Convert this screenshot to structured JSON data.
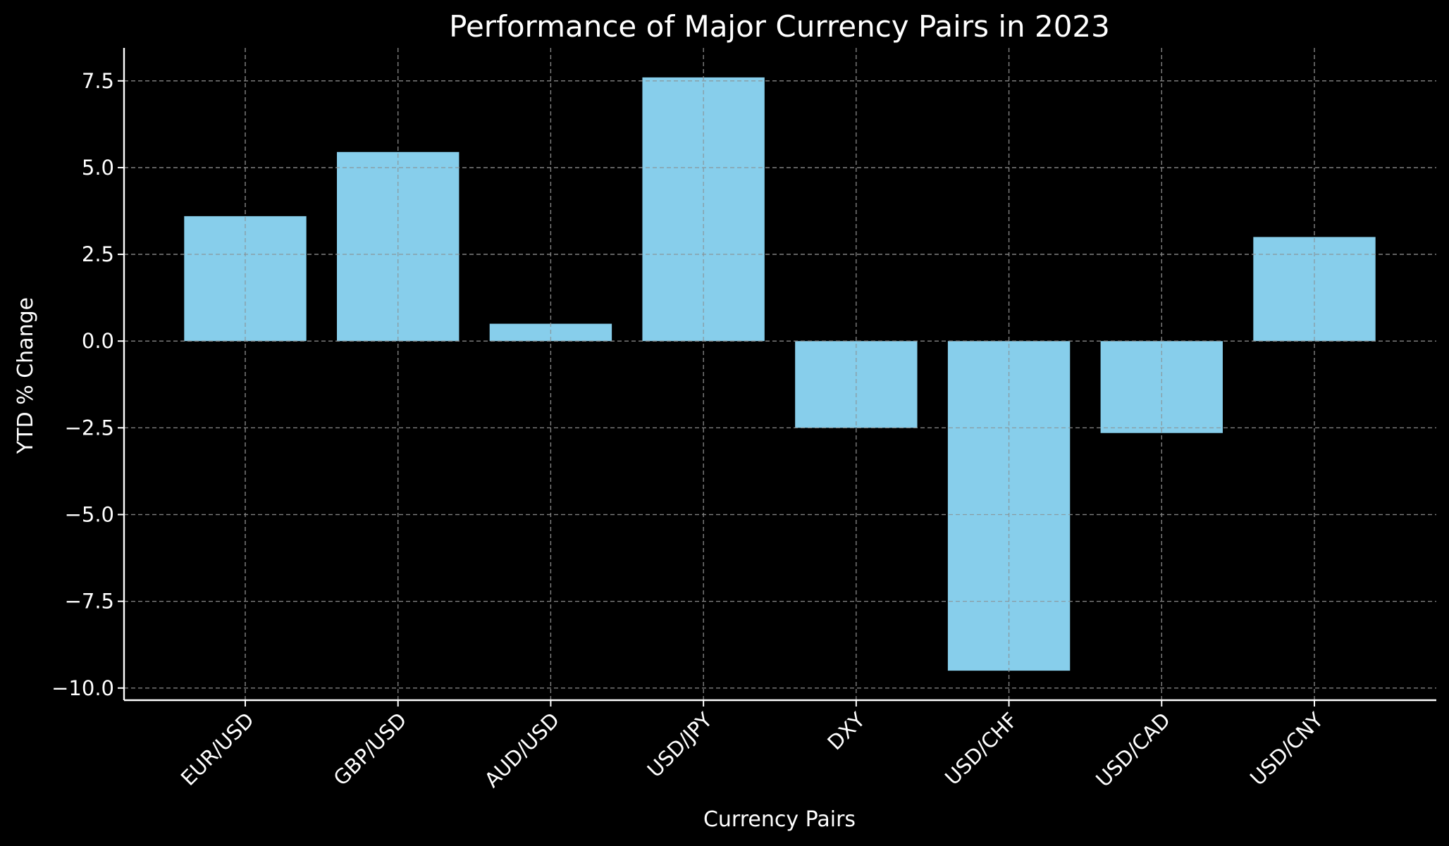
{
  "chart_data": {
    "type": "bar",
    "title": "Performance of Major Currency Pairs in 2023",
    "xlabel": "Currency Pairs",
    "ylabel": "YTD % Change",
    "categories": [
      "EUR/USD",
      "GBP/USD",
      "AUD/USD",
      "USD/JPY",
      "DXY",
      "USD/CHF",
      "USD/CAD",
      "USD/CNY"
    ],
    "values": [
      3.6,
      5.45,
      0.5,
      7.6,
      -2.5,
      -9.5,
      -2.65,
      3.0
    ],
    "ylim": [
      -10.35,
      8.45
    ],
    "yticks": [
      -10.0,
      -7.5,
      -5.0,
      -2.5,
      0.0,
      2.5,
      5.0,
      7.5
    ],
    "ytick_labels": [
      "−10.0",
      "−7.5",
      "−5.0",
      "−2.5",
      "0.0",
      "2.5",
      "5.0",
      "7.5"
    ],
    "grid": true,
    "bar_color": "#87ceeb",
    "background_color": "#000000",
    "text_color": "#ffffff",
    "grid_color": "#8a8a8a"
  }
}
